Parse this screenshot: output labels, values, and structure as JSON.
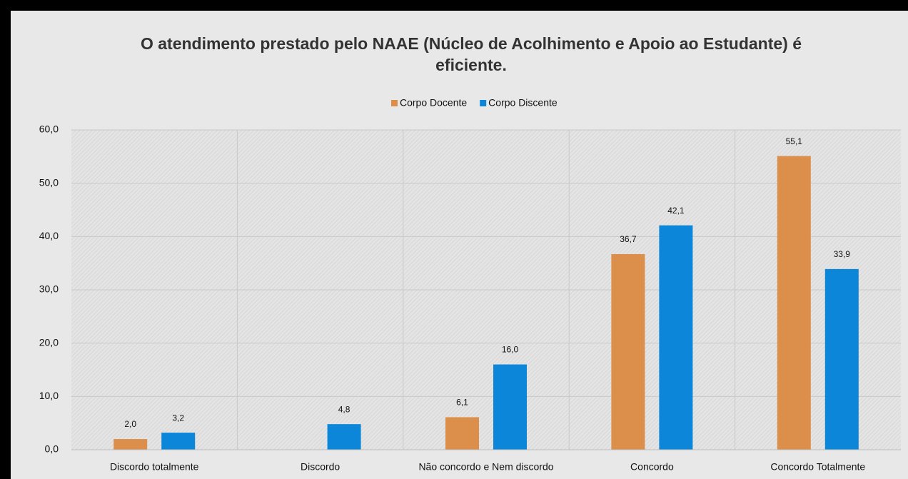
{
  "chart_data": {
    "type": "bar",
    "title": "O atendimento prestado pelo NAAE (Núcleo de Acolhimento e Apoio ao Estudante) é eficiente.",
    "categories": [
      "Discordo totalmente",
      "Discordo",
      "Não concordo e Nem discordo",
      "Concordo",
      "Concordo Totalmente"
    ],
    "series": [
      {
        "name": "Corpo Docente",
        "color": "#dc8f4a",
        "values": [
          2.0,
          null,
          6.1,
          36.7,
          55.1
        ],
        "value_labels": [
          "2,0",
          null,
          "6,1",
          "36,7",
          "55,1"
        ]
      },
      {
        "name": "Corpo Discente",
        "color": "#0b86d9",
        "values": [
          3.2,
          4.8,
          16.0,
          42.1,
          33.9
        ],
        "value_labels": [
          "3,2",
          "4,8",
          "16,0",
          "42,1",
          "33,9"
        ]
      }
    ],
    "ylim": [
      0,
      60
    ],
    "yticks": [
      {
        "value": 0,
        "label": "0,0"
      },
      {
        "value": 10,
        "label": "10,0"
      },
      {
        "value": 20,
        "label": "20,0"
      },
      {
        "value": 30,
        "label": "30,0"
      },
      {
        "value": 40,
        "label": "40,0"
      },
      {
        "value": 50,
        "label": "50,0"
      },
      {
        "value": 60,
        "label": "60,0"
      }
    ],
    "grid": true,
    "legend": "top"
  }
}
